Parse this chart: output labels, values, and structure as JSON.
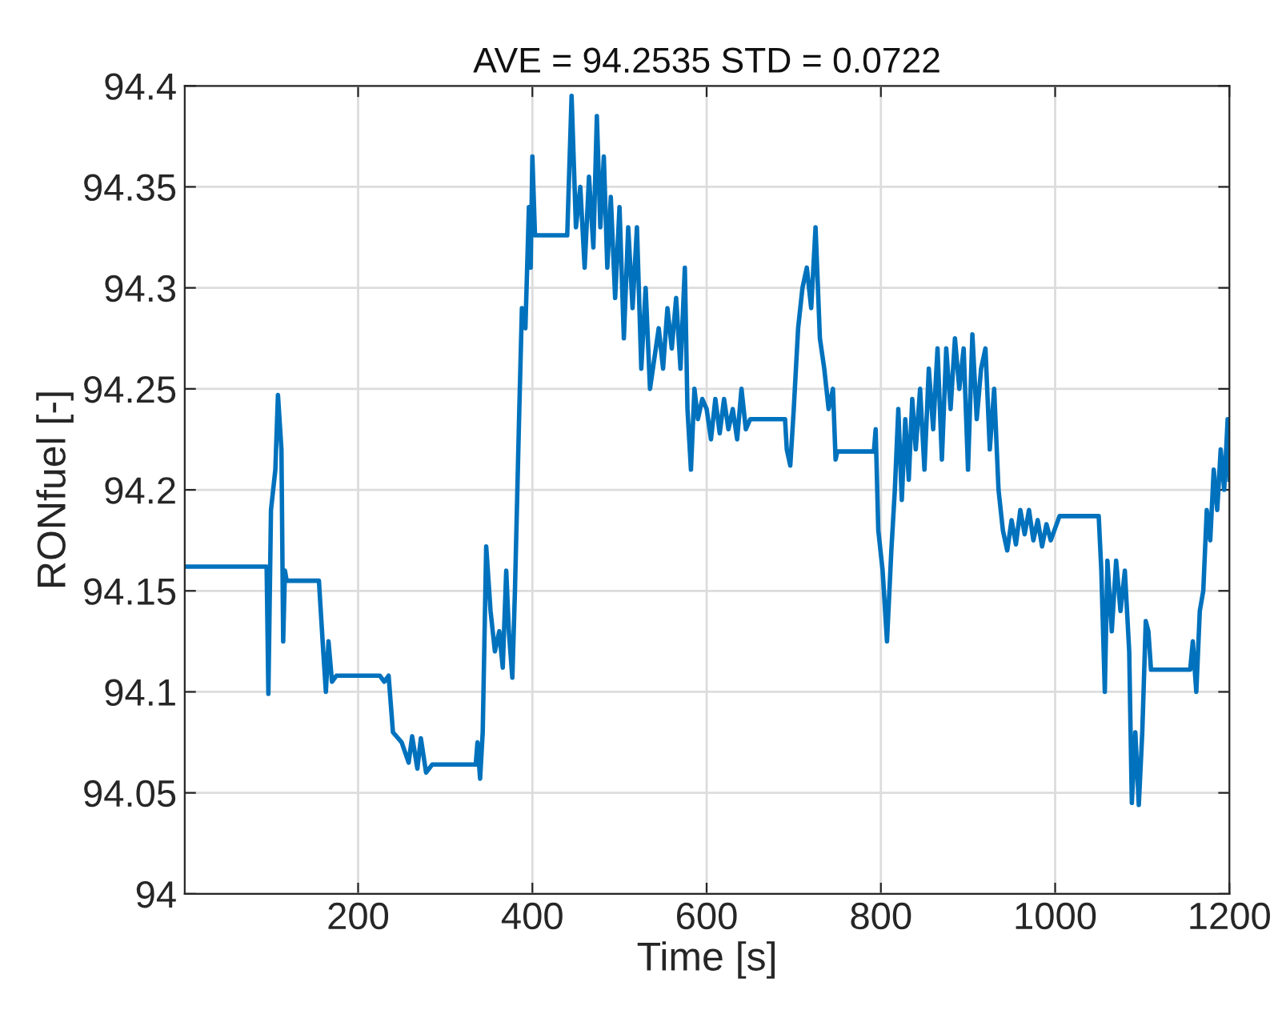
{
  "chart_data": {
    "type": "line",
    "title": "AVE = 94.2535 STD = 0.0722",
    "xlabel": "Time [s]",
    "ylabel": "RONfuel [-]",
    "xlim": [
      1,
      1200
    ],
    "xticks": [
      200,
      400,
      600,
      800,
      1000,
      1200
    ],
    "ylim": [
      94,
      94.4
    ],
    "yticks": [
      94,
      94.05,
      94.1,
      94.15,
      94.2,
      94.25,
      94.3,
      94.35,
      94.4
    ],
    "grid": true,
    "marker": "none",
    "line_style": "solid",
    "series": [
      {
        "color": "#0072bd",
        "x": [
          1,
          95,
          97,
          100,
          105,
          108,
          112,
          114,
          116,
          118,
          155,
          160,
          163,
          166,
          170,
          175,
          225,
          230,
          235,
          240,
          250,
          258,
          262,
          268,
          272,
          278,
          285,
          335,
          337,
          340,
          343,
          347,
          352,
          357,
          362,
          366,
          370,
          373,
          377,
          380,
          385,
          388,
          392,
          396,
          398,
          400,
          403,
          440,
          445,
          450,
          455,
          460,
          465,
          470,
          474,
          478,
          482,
          486,
          490,
          495,
          500,
          505,
          510,
          515,
          520,
          525,
          530,
          535,
          545,
          550,
          555,
          560,
          565,
          570,
          575,
          578,
          582,
          586,
          590,
          595,
          600,
          605,
          610,
          615,
          620,
          625,
          630,
          635,
          640,
          645,
          650,
          690,
          692,
          696,
          700,
          705,
          710,
          715,
          720,
          725,
          730,
          735,
          740,
          745,
          748,
          750,
          792,
          794,
          797,
          802,
          807,
          812,
          816,
          820,
          824,
          828,
          832,
          836,
          840,
          845,
          850,
          855,
          860,
          865,
          870,
          875,
          880,
          885,
          890,
          895,
          900,
          905,
          910,
          915,
          920,
          925,
          930,
          935,
          940,
          945,
          950,
          955,
          960,
          965,
          970,
          975,
          980,
          985,
          990,
          995,
          1005,
          1050,
          1053,
          1057,
          1060,
          1065,
          1070,
          1075,
          1080,
          1085,
          1088,
          1092,
          1096,
          1100,
          1104,
          1107,
          1110,
          1155,
          1158,
          1162,
          1166,
          1170,
          1174,
          1178,
          1182,
          1186,
          1190,
          1194,
          1198,
          1200
        ],
        "values": [
          94.162,
          94.162,
          94.099,
          94.19,
          94.21,
          94.247,
          94.22,
          94.125,
          94.16,
          94.155,
          94.155,
          94.12,
          94.1,
          94.125,
          94.105,
          94.108,
          94.108,
          94.105,
          94.108,
          94.08,
          94.075,
          94.065,
          94.078,
          94.062,
          94.077,
          94.06,
          94.064,
          94.064,
          94.075,
          94.057,
          94.08,
          94.172,
          94.14,
          94.12,
          94.13,
          94.112,
          94.16,
          94.13,
          94.107,
          94.15,
          94.24,
          94.29,
          94.28,
          94.34,
          94.31,
          94.365,
          94.326,
          94.326,
          94.395,
          94.33,
          94.35,
          94.31,
          94.355,
          94.32,
          94.385,
          94.33,
          94.365,
          94.31,
          94.345,
          94.295,
          94.34,
          94.275,
          94.33,
          94.29,
          94.33,
          94.26,
          94.3,
          94.25,
          94.28,
          94.26,
          94.29,
          94.27,
          94.295,
          94.26,
          94.31,
          94.24,
          94.21,
          94.25,
          94.235,
          94.245,
          94.24,
          94.225,
          94.245,
          94.228,
          94.245,
          94.23,
          94.24,
          94.225,
          94.25,
          94.23,
          94.235,
          94.235,
          94.22,
          94.212,
          94.24,
          94.28,
          94.3,
          94.31,
          94.29,
          94.33,
          94.275,
          94.26,
          94.24,
          94.25,
          94.215,
          94.219,
          94.219,
          94.23,
          94.18,
          94.16,
          94.125,
          94.17,
          94.2,
          94.24,
          94.195,
          94.235,
          94.205,
          94.245,
          94.22,
          94.25,
          94.21,
          94.26,
          94.23,
          94.27,
          94.215,
          94.27,
          94.24,
          94.275,
          94.25,
          94.27,
          94.21,
          94.277,
          94.235,
          94.26,
          94.27,
          94.22,
          94.25,
          94.2,
          94.18,
          94.17,
          94.185,
          94.173,
          94.19,
          94.178,
          94.19,
          94.175,
          94.185,
          94.172,
          94.183,
          94.175,
          94.187,
          94.187,
          94.16,
          94.1,
          94.165,
          94.13,
          94.165,
          94.14,
          94.16,
          94.12,
          94.045,
          94.08,
          94.044,
          94.08,
          94.135,
          94.13,
          94.111,
          94.111,
          94.125,
          94.1,
          94.14,
          94.15,
          94.19,
          94.175,
          94.21,
          94.19,
          94.22,
          94.2,
          94.235,
          94.205
        ]
      }
    ]
  }
}
